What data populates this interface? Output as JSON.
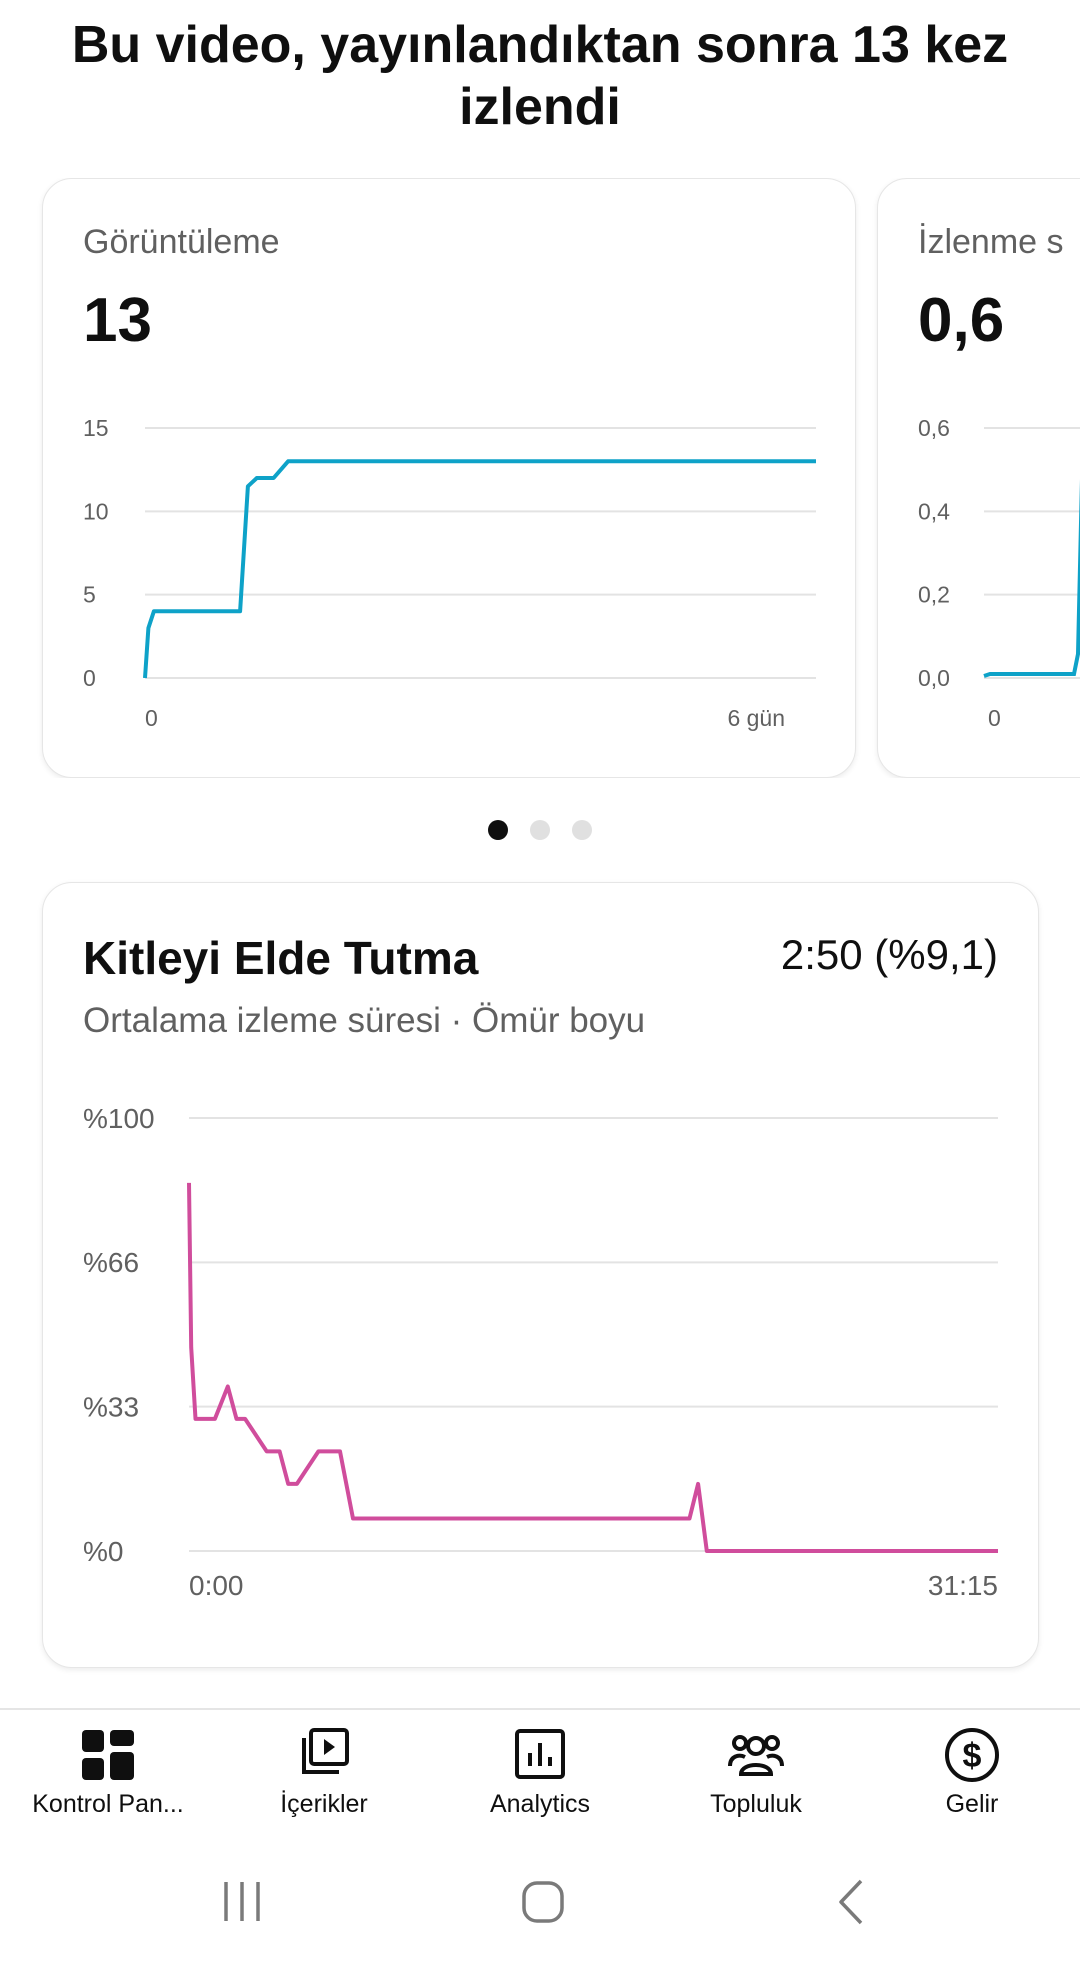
{
  "headline": "Bu video, yayınlandıktan sonra 13 kez izlendi",
  "cards": [
    {
      "label": "Görüntüleme",
      "value": "13",
      "chart_data": {
        "type": "line",
        "title": "Görüntüleme",
        "yticks": [
          "15",
          "10",
          "5",
          "0"
        ],
        "xticks": [
          "0",
          "6 gün"
        ],
        "ylim": [
          0,
          15
        ],
        "xlim": [
          0,
          6
        ],
        "x": [
          0,
          0.03,
          0.08,
          0.85,
          0.92,
          1.0,
          1.15,
          1.28,
          6.0
        ],
        "y": [
          0,
          3,
          4,
          4,
          11.5,
          12,
          12,
          13,
          13
        ],
        "color": "#0ea2c8"
      }
    },
    {
      "label": "İzlenme s",
      "value": "0,6",
      "chart_data": {
        "type": "line",
        "yticks": [
          "0,6",
          "0,4",
          "0,2",
          "0,0"
        ],
        "xticks": [
          "0"
        ],
        "ylim": [
          0,
          0.6
        ],
        "color": "#0ea2c8"
      }
    }
  ],
  "pager": {
    "count": 3,
    "active": 0
  },
  "retention": {
    "title": "Kitleyi Elde Tutma",
    "value": "2:50 (%9,1)",
    "subtitle": "Ortalama izleme süresi · Ömür boyu",
    "chart_data": {
      "type": "line",
      "yticks": [
        "%100",
        "%66",
        "%33",
        "%0"
      ],
      "xticks": [
        "0:00",
        "31:15"
      ],
      "ylim": [
        0,
        100
      ],
      "x_unit": "seconds",
      "x": [
        0,
        5,
        15,
        30,
        60,
        90,
        110,
        130,
        180,
        210,
        230,
        250,
        300,
        350,
        380,
        410,
        430,
        450,
        470,
        1160,
        1180,
        1200,
        1875
      ],
      "y": [
        85,
        47,
        30.5,
        30.5,
        30.5,
        38,
        30.5,
        30.5,
        23,
        23,
        15.5,
        15.5,
        23,
        23,
        7.5,
        7.5,
        7.5,
        7.5,
        7.5,
        7.5,
        15.5,
        0,
        0
      ],
      "color": "#d04d9c"
    }
  },
  "nav": {
    "items": [
      {
        "label": "Kontrol Pan...",
        "icon": "dashboard-icon"
      },
      {
        "label": "İçerikler",
        "icon": "content-icon"
      },
      {
        "label": "Analytics",
        "icon": "analytics-icon"
      },
      {
        "label": "Topluluk",
        "icon": "community-icon"
      },
      {
        "label": "Gelir",
        "icon": "earn-icon"
      }
    ]
  },
  "system_nav": {
    "icons": [
      "recents-icon",
      "home-icon",
      "back-icon"
    ]
  }
}
